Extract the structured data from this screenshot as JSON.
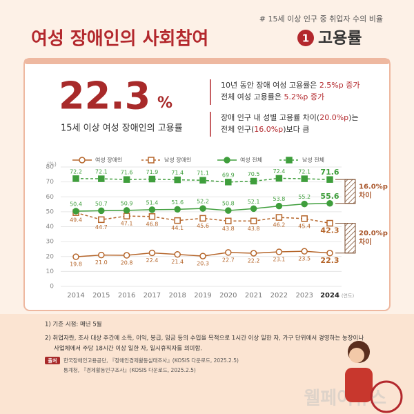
{
  "header": {
    "tag": "# 15세 이상 인구 중 취업자 수의 비율",
    "title": "여성 장애인의 사회참여",
    "badge": "1",
    "subtitle": "고용률"
  },
  "highlight": {
    "value": "22.3",
    "unit": "%",
    "caption": "15세 이상 여성 장애인의 고용률"
  },
  "notes": [
    [
      {
        "text": "10년 동안 장애 여성 고용률은 "
      },
      {
        "text": "2.5%p 증가",
        "emphasis": true
      }
    ],
    [
      {
        "text": "전체 여성 고용률은 "
      },
      {
        "text": "5.2%p 증가",
        "emphasis": true
      }
    ],
    [
      {
        "text": "장애 인구 내 성별 고용률 차이("
      },
      {
        "text": "20.0%p",
        "emphasis": true
      },
      {
        "text": ")는"
      }
    ],
    [
      {
        "text": "전체 인구("
      },
      {
        "text": "16.0%p",
        "emphasis": true
      },
      {
        "text": ")보다 큼"
      }
    ]
  ],
  "chart_data": {
    "type": "line",
    "y_label": "(%)",
    "x_label": "(연도)",
    "categories": [
      "2014",
      "2015",
      "2016",
      "2017",
      "2018",
      "2019",
      "2020",
      "2021",
      "2022",
      "2023",
      "2024"
    ],
    "ylim": [
      0,
      80
    ],
    "yticks": [
      0,
      10,
      20,
      30,
      40,
      50,
      60,
      70,
      80
    ],
    "series": [
      {
        "name": "여성 장애인",
        "color": "#b5652a",
        "dashed": false,
        "values": [
          19.8,
          21.0,
          20.8,
          22.4,
          21.4,
          20.3,
          22.7,
          22.2,
          23.1,
          23.5,
          22.3
        ],
        "value_labels": [
          "19.8",
          "21.0",
          "20.8",
          "22.4",
          "21.4",
          "20.3",
          "22.7",
          "22.2",
          "23.1",
          "23.5",
          "22.3"
        ]
      },
      {
        "name": "남성 장애인",
        "color": "#b5652a",
        "dashed": true,
        "values": [
          49.4,
          44.7,
          47.1,
          46.8,
          44.1,
          45.6,
          43.8,
          43.8,
          46.2,
          45.4,
          42.3
        ],
        "value_labels": [
          "49.4",
          "44.7",
          "47.1",
          "46.8",
          "44.1",
          "45.6",
          "43.8",
          "43.8",
          "46.2",
          "45.4",
          "42.3"
        ]
      },
      {
        "name": "여성 전체",
        "color": "#3f9e3c",
        "dashed": false,
        "values": [
          50.4,
          50.7,
          50.9,
          51.4,
          51.6,
          52.2,
          50.8,
          52.1,
          53.8,
          55.2,
          55.6
        ],
        "value_labels": [
          "50.4",
          "50.7",
          "50.9",
          "51.4",
          "51.6",
          "52.2",
          "50.8",
          "52.1",
          "53.8",
          "55.2",
          "55.6"
        ]
      },
      {
        "name": "남성 전체",
        "color": "#3f9e3c",
        "dashed": true,
        "values": [
          72.2,
          72.1,
          71.6,
          71.9,
          71.4,
          71.1,
          69.9,
          70.5,
          72.4,
          72.1,
          71.6
        ],
        "value_labels": [
          "72.2",
          "72.1",
          "71.6",
          "71.9",
          "71.4",
          "71.1",
          "69.9",
          "70.5",
          "72.4",
          "72.1",
          "71.6"
        ]
      }
    ],
    "annotations": [
      [
        "16.0%p",
        "차이"
      ],
      [
        "20.0%p",
        "차이"
      ]
    ]
  },
  "footnotes": [
    "1) 기준 시점: 매년 5월",
    "2) 취업자란, 조사 대상 주간에 소득, 이익, 봉급, 임금 등의 수입을 목적으로 1시간 이상 일한 자, 가구 단위에서 경영하는 농장이나",
    "사업체에서 주당 18시간 이상 일한 자, 일시휴직자를 의미함."
  ],
  "source": {
    "label": "출처",
    "lines": [
      "한국장애인고용공단, 『장애인경제활동실태조사』(KOSIS 다운로드, 2025.2.5)",
      "통계청, 『경제활동인구조사』(KOSIS 다운로드, 2025.2.5)"
    ]
  },
  "watermark": "웰페어뉴스"
}
